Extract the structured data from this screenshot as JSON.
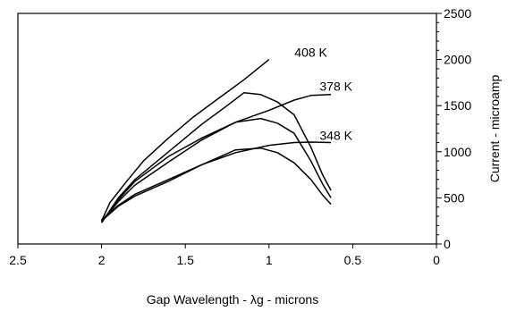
{
  "chart_data": {
    "type": "line",
    "title": "",
    "xlabel": "Gap Wavelength - λg - microns",
    "ylabel": "Current - microamp",
    "xlim": [
      2.5,
      0
    ],
    "x_reversed": true,
    "ylim": [
      0,
      2500
    ],
    "xticks": [
      "2.5",
      "2",
      "1.5",
      "1",
      "0.5",
      "0"
    ],
    "yticks": [
      "0",
      "500",
      "1000",
      "1500",
      "2000",
      "2500"
    ],
    "grid": false,
    "series": [
      {
        "name": "408 K",
        "label": "408 K",
        "label_at": [
          0.75,
          2030
        ],
        "x": [
          2.0,
          1.95,
          1.85,
          1.75,
          1.6,
          1.45,
          1.3,
          1.15,
          1.0
        ],
        "y": [
          250,
          450,
          680,
          900,
          1150,
          1380,
          1580,
          1780,
          2000
        ]
      },
      {
        "name": "408 K",
        "label": "",
        "label_at": [
          0,
          0
        ],
        "x": [
          2.0,
          1.9,
          1.8,
          1.6,
          1.4,
          1.25,
          1.15,
          1.05,
          0.95,
          0.85,
          0.75,
          0.68,
          0.63
        ],
        "y": [
          230,
          500,
          700,
          1000,
          1300,
          1500,
          1640,
          1620,
          1540,
          1400,
          1050,
          750,
          580
        ]
      },
      {
        "name": "378 K",
        "label": "378 K",
        "label_at": [
          0.6,
          1660
        ],
        "x": [
          2.0,
          1.9,
          1.8,
          1.6,
          1.4,
          1.2,
          1.0,
          0.85,
          0.75,
          0.63
        ],
        "y": [
          240,
          480,
          680,
          950,
          1150,
          1320,
          1450,
          1560,
          1610,
          1620
        ]
      },
      {
        "name": "378 K",
        "label": "",
        "label_at": [
          0,
          0
        ],
        "x": [
          2.0,
          1.9,
          1.8,
          1.6,
          1.4,
          1.2,
          1.05,
          0.95,
          0.85,
          0.75,
          0.68,
          0.63
        ],
        "y": [
          240,
          460,
          640,
          890,
          1130,
          1320,
          1360,
          1310,
          1200,
          900,
          650,
          500
        ]
      },
      {
        "name": "348 K",
        "label": "348 K",
        "label_at": [
          0.6,
          1130
        ],
        "x": [
          2.0,
          1.9,
          1.8,
          1.6,
          1.4,
          1.2,
          1.0,
          0.85,
          0.75,
          0.63
        ],
        "y": [
          260,
          420,
          540,
          700,
          860,
          990,
          1070,
          1100,
          1105,
          1100
        ]
      },
      {
        "name": "348 K",
        "label": "",
        "label_at": [
          0,
          0
        ],
        "x": [
          2.0,
          1.9,
          1.8,
          1.6,
          1.4,
          1.2,
          1.05,
          0.95,
          0.85,
          0.75,
          0.68,
          0.63
        ],
        "y": [
          250,
          410,
          520,
          680,
          860,
          1020,
          1040,
          990,
          880,
          700,
          530,
          430
        ]
      }
    ]
  }
}
